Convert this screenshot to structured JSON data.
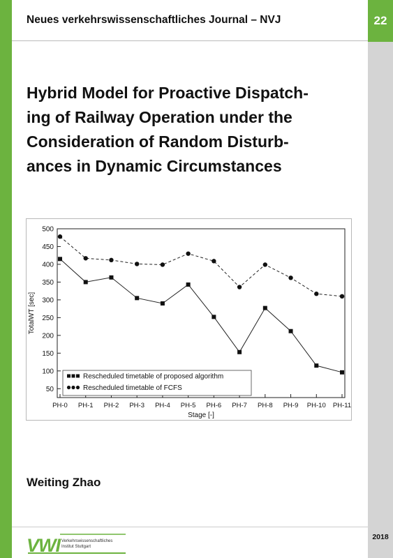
{
  "series": {
    "title": "Neues verkehrswissenschaftliches Journal – NVJ",
    "number": "22"
  },
  "book": {
    "title_lines": [
      "Hybrid Model for Proactive Dispatch-",
      "ing of Railway Operation under the",
      "Consideration of Random Disturb-",
      "ances in Dynamic Circumstances"
    ],
    "author": "Weiting Zhao",
    "year": "2018"
  },
  "publisher": {
    "logo_text": "VWI",
    "name_lines": [
      "Verkehrswissenschaftliches",
      "Institut Stuttgart"
    ]
  },
  "colors": {
    "accent_green": "#6cb33f",
    "strip_gray": "#d4d4d4"
  },
  "chart_data": {
    "type": "line",
    "xlabel": "Stage [-]",
    "ylabel": "TotalWT [sec]",
    "categories": [
      "PH-0",
      "PH-1",
      "PH-2",
      "PH-3",
      "PH-4",
      "PH-5",
      "PH-6",
      "PH-7",
      "PH-8",
      "PH-9",
      "PH-10",
      "PH-11"
    ],
    "ylim": [
      25,
      500
    ],
    "yticks": [
      50,
      100,
      150,
      200,
      250,
      300,
      350,
      400,
      450,
      500
    ],
    "grid": false,
    "legend_position": "bottom-left",
    "series": [
      {
        "name": "Rescheduled timetable of proposed algorithm",
        "marker": "square",
        "line": "solid",
        "values": [
          415,
          350,
          363,
          305,
          290,
          343,
          252,
          153,
          277,
          212,
          115,
          96
        ]
      },
      {
        "name": "Rescheduled timetable of FCFS",
        "marker": "circle",
        "line": "dashed",
        "values": [
          478,
          417,
          412,
          401,
          399,
          430,
          409,
          336,
          399,
          362,
          317,
          310
        ]
      }
    ]
  }
}
